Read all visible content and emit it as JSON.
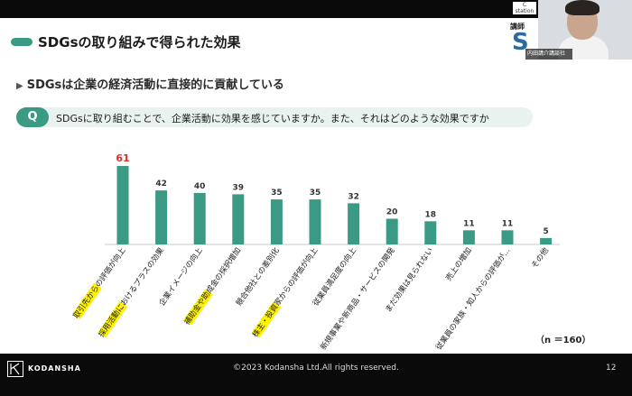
{
  "slide": {
    "title": "SDGsの取り組みで得られた効果",
    "subheading": "SDGsは企業の経済活動に直接的に貢献している",
    "question_badge": "Q",
    "question": "SDGsに取り組むことで、企業活動に効果を感じていますか。また、それはどのような効果ですか",
    "sample_size": "（n ＝160）"
  },
  "footer": {
    "brand": "KODANSHA",
    "copyright": "©2023 Kodansha Ltd.All rights reserved.",
    "page_number": "12"
  },
  "overlay": {
    "logo_text": "C station",
    "lecturer_label": "講師",
    "lecturer_letter": "S",
    "name_caption": "内田講介講談社"
  },
  "colors": {
    "accent": "#3b9a84",
    "highlight_value": "#d93025",
    "label_highlight": "#fff200"
  },
  "chart_data": {
    "type": "bar",
    "categories": [
      "取引先からの評価が向上",
      "採用活動におけるプラスの効果",
      "企業イメージの向上",
      "補助金や助成金の採択増加",
      "競合他社との差別化",
      "株主・投資家からの評価が向上",
      "従業員満足度の向上",
      "新規事業や新商品・サービスの開発",
      "まだ効果は見られない",
      "売上の増加",
      "従業員の家族・知人からの評価が…",
      "その他"
    ],
    "values": [
      61,
      42,
      40,
      39,
      35,
      35,
      32,
      20,
      18,
      11,
      11,
      5
    ],
    "highlighted": [
      true,
      true,
      false,
      true,
      false,
      true,
      false,
      false,
      false,
      false,
      false,
      false
    ],
    "ylim": [
      0,
      61
    ]
  }
}
